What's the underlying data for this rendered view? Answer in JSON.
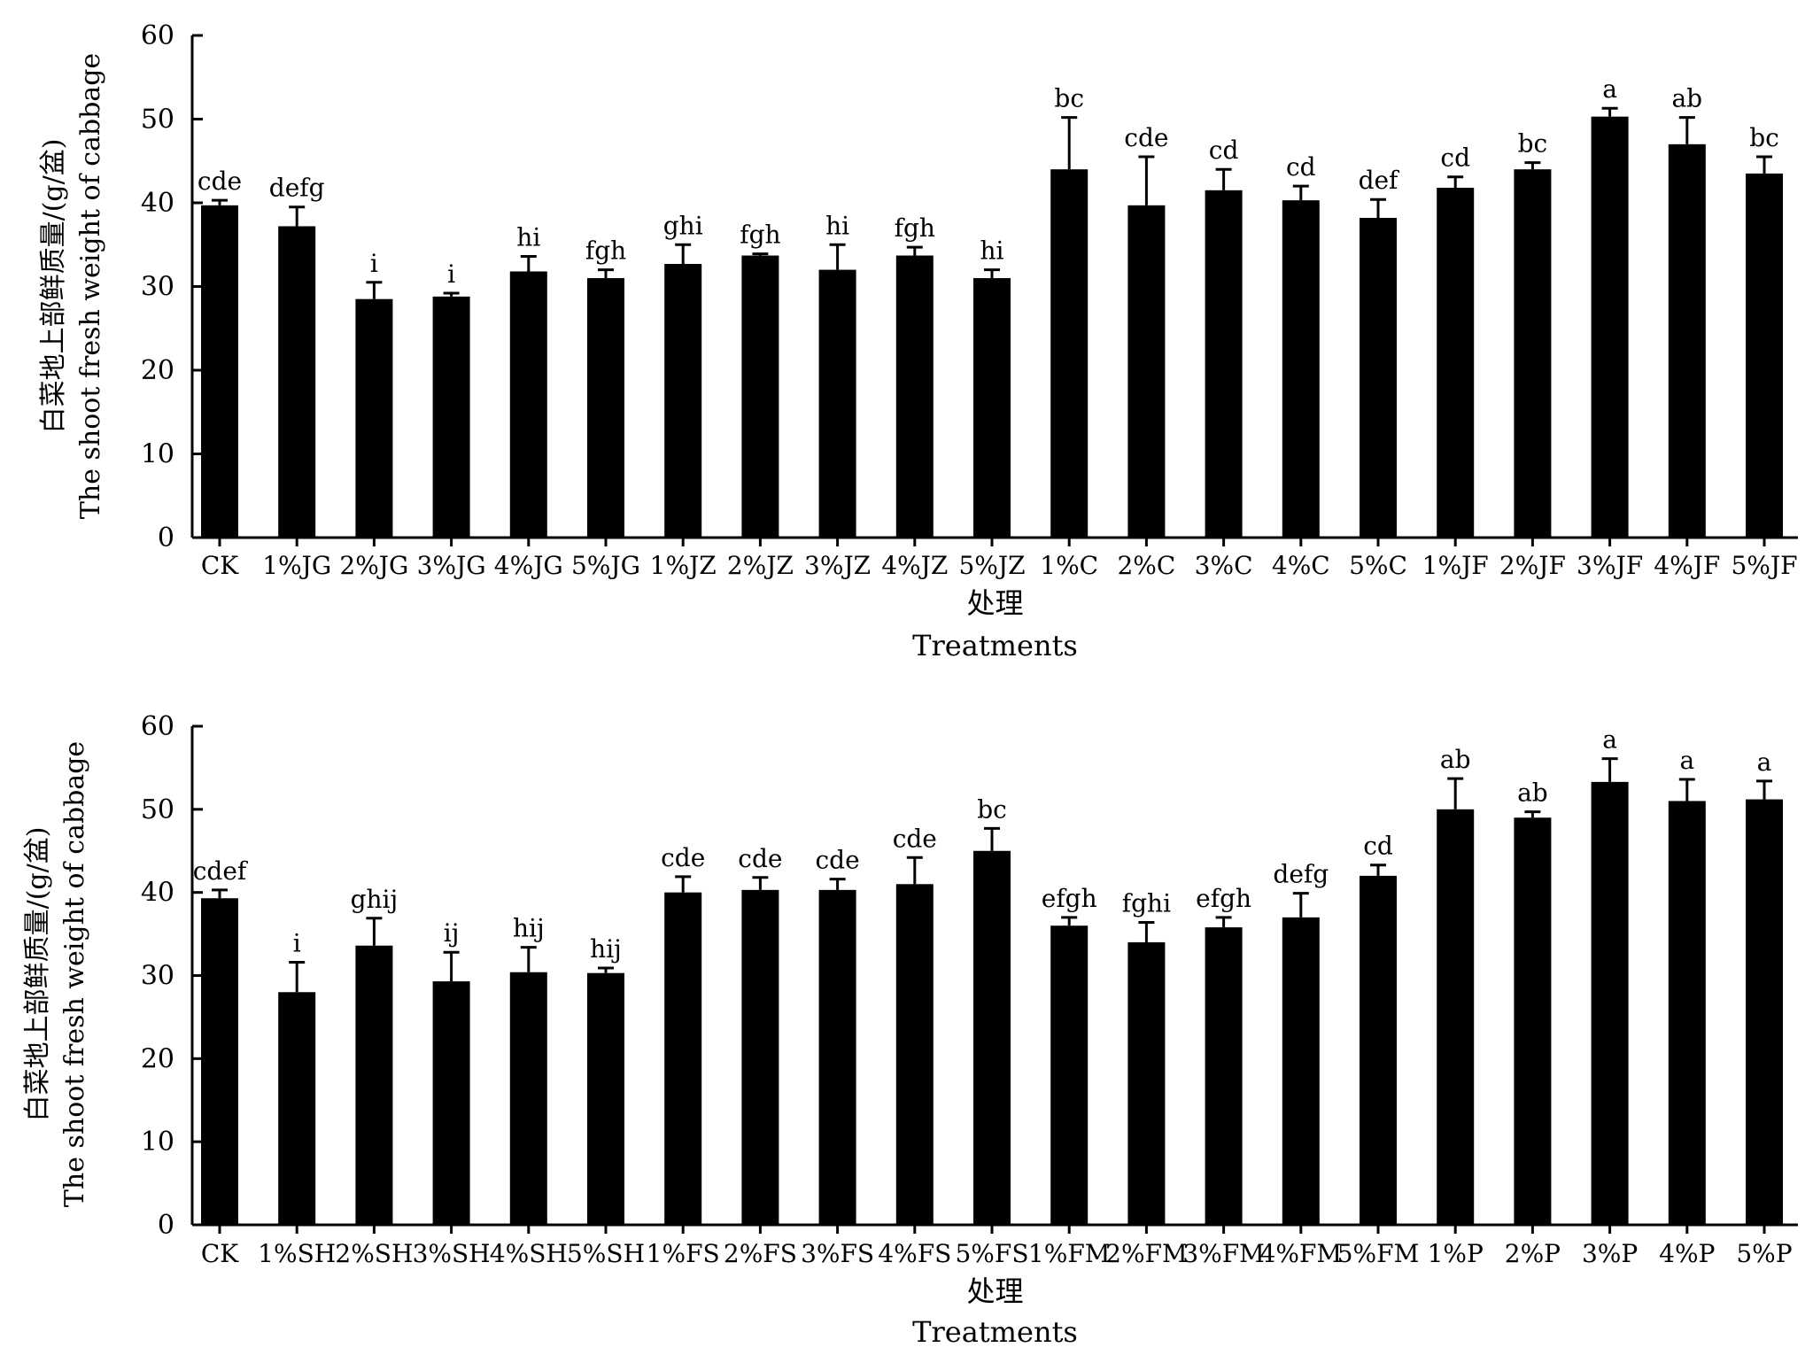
{
  "chart_data": [
    {
      "type": "bar",
      "xlabel_cn": "处理",
      "xlabel_en": "Treatments",
      "ylabel_cn": "白菜地上部鲜质量/(g/盆)",
      "ylabel_en": "The shoot fresh weight of cabbage",
      "ylim": [
        0,
        60
      ],
      "yticks": [
        0,
        10,
        20,
        30,
        40,
        50,
        60
      ],
      "bar_color": "#000000",
      "categories": [
        "CK",
        "1%JG",
        "2%JG",
        "3%JG",
        "4%JG",
        "5%JG",
        "1%JZ",
        "2%JZ",
        "3%JZ",
        "4%JZ",
        "5%JZ",
        "1%C",
        "2%C",
        "3%C",
        "4%C",
        "5%C",
        "1%JF",
        "2%JF",
        "3%JF",
        "4%JF",
        "5%JF"
      ],
      "values": [
        39.7,
        37.2,
        28.5,
        28.8,
        31.8,
        31.0,
        32.7,
        33.7,
        32.0,
        33.7,
        31.0,
        44.0,
        39.7,
        41.5,
        40.3,
        38.2,
        41.8,
        44.0,
        50.3,
        47.0,
        43.5
      ],
      "errors": [
        0.6,
        2.3,
        2.0,
        0.4,
        1.8,
        1.0,
        2.3,
        0.2,
        3.0,
        1.0,
        1.0,
        6.2,
        5.8,
        2.5,
        1.7,
        2.2,
        1.3,
        0.8,
        1.0,
        3.2,
        2.0
      ],
      "significance": [
        "cde",
        "defg",
        "i",
        "i",
        "hi",
        "fgh",
        "ghi",
        "fgh",
        "hi",
        "fgh",
        "hi",
        "bc",
        "cde",
        "cd",
        "cd",
        "def",
        "cd",
        "bc",
        "a",
        "ab",
        "bc"
      ]
    },
    {
      "type": "bar",
      "xlabel_cn": "处理",
      "xlabel_en": "Treatments",
      "ylabel_cn": "白菜地上部鲜质量/(g/盆)",
      "ylabel_en": "The shoot fresh weight of cabbage",
      "ylim": [
        0,
        60
      ],
      "yticks": [
        0,
        10,
        20,
        30,
        40,
        50,
        60
      ],
      "bar_color": "#000000",
      "categories": [
        "CK",
        "1%SH",
        "2%SH",
        "3%SH",
        "4%SH",
        "5%SH",
        "1%FS",
        "2%FS",
        "3%FS",
        "4%FS",
        "5%FS",
        "1%FM",
        "2%FM",
        "3%FM",
        "4%FM",
        "5%FM",
        "1%P",
        "2%P",
        "3%P",
        "4%P",
        "5%P"
      ],
      "values": [
        39.3,
        28.0,
        33.6,
        29.3,
        30.4,
        30.3,
        40.0,
        40.3,
        40.3,
        41.0,
        45.0,
        36.0,
        34.0,
        35.8,
        37.0,
        42.0,
        50.0,
        49.0,
        53.3,
        51.0,
        51.2
      ],
      "errors": [
        1.0,
        3.6,
        3.3,
        3.5,
        3.0,
        0.6,
        1.9,
        1.5,
        1.3,
        3.2,
        2.7,
        1.0,
        2.4,
        1.2,
        2.9,
        1.3,
        3.7,
        0.7,
        2.8,
        2.6,
        2.2
      ],
      "significance": [
        "cdef",
        "i",
        "ghij",
        "ij",
        "hij",
        "hij",
        "cde",
        "cde",
        "cde",
        "cde",
        "bc",
        "efgh",
        "fghi",
        "efgh",
        "defg",
        "cd",
        "ab",
        "ab",
        "a",
        "a",
        "a"
      ]
    }
  ]
}
